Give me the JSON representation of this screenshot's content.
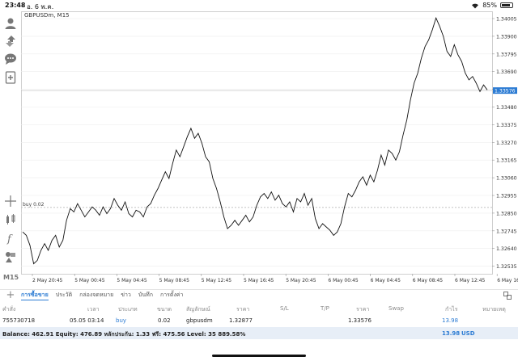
{
  "status_bar": {
    "time": "23:48",
    "date": "อ. 6 พ.ค.",
    "battery": "85%",
    "battery_level": 0.85
  },
  "chart": {
    "symbol": "GBPUSDm, M15",
    "trade_line_label": "buy 0.02",
    "current_price": "1.33576",
    "price_labels": [
      "1.34005",
      "1.33900",
      "1.33795",
      "1.33690",
      "1.33585",
      "1.33480",
      "1.33375",
      "1.33270",
      "1.33165",
      "1.33060",
      "1.32955",
      "1.32850",
      "1.32745",
      "1.32640",
      "1.32535"
    ],
    "time_labels": [
      "2 May 20:45",
      "5 May 00:45",
      "5 May 04:45",
      "5 May 08:45",
      "5 May 12:45",
      "5 May 16:45",
      "5 May 20:45",
      "6 May 00:45",
      "6 May 04:45",
      "6 May 08:45",
      "6 May 12:45",
      "6 May 16:45"
    ],
    "colors": {
      "line": "#111111",
      "grid": "#eeeeee",
      "price_tag": "#2b7bd3",
      "trade_line": "#bbbbbb"
    }
  },
  "chart_data": {
    "type": "line",
    "xlabel": "",
    "ylabel": "",
    "ylim": [
      1.3248,
      1.3405
    ],
    "grid": true,
    "series": [
      {
        "name": "",
        "values": [
          1.3273,
          1.3271,
          1.3265,
          1.3254,
          1.3256,
          1.3262,
          1.3266,
          1.3262,
          1.3268,
          1.3271,
          1.3264,
          1.3268,
          1.328,
          1.3287,
          1.3285,
          1.329,
          1.3286,
          1.3282,
          1.3285,
          1.3288,
          1.3286,
          1.3283,
          1.3288,
          1.3284,
          1.3287,
          1.3293,
          1.3289,
          1.3286,
          1.3291,
          1.3284,
          1.3282,
          1.3286,
          1.3285,
          1.3282,
          1.3288,
          1.329,
          1.3295,
          1.3299,
          1.3304,
          1.3309,
          1.3305,
          1.3314,
          1.3322,
          1.3318,
          1.3324,
          1.333,
          1.3335,
          1.3329,
          1.3332,
          1.3326,
          1.3318,
          1.3315,
          1.3305,
          1.3299,
          1.3291,
          1.3282,
          1.3275,
          1.3277,
          1.328,
          1.3277,
          1.328,
          1.3283,
          1.3279,
          1.3282,
          1.3289,
          1.3294,
          1.3296,
          1.3293,
          1.3297,
          1.3292,
          1.3295,
          1.329,
          1.3288,
          1.3291,
          1.3285,
          1.3293,
          1.3291,
          1.3296,
          1.3289,
          1.3293,
          1.3281,
          1.3275,
          1.3278,
          1.3276,
          1.3274,
          1.3271,
          1.3273,
          1.3278,
          1.3288,
          1.3296,
          1.3294,
          1.3298,
          1.3303,
          1.3306,
          1.3301,
          1.3307,
          1.3303,
          1.331,
          1.3319,
          1.3313,
          1.3322,
          1.332,
          1.3316,
          1.3321,
          1.3331,
          1.334,
          1.3352,
          1.3362,
          1.3368,
          1.3377,
          1.3384,
          1.3388,
          1.3394,
          1.3401,
          1.3396,
          1.339,
          1.3381,
          1.3378,
          1.3385,
          1.3379,
          1.3375,
          1.3368,
          1.3364,
          1.3366,
          1.3362,
          1.3357,
          1.3361,
          1.3358
        ]
      }
    ]
  },
  "tabs": [
    "การซื้อขาย",
    "ประวัติ",
    "กล่องจดหมาย",
    "ข่าว",
    "บันทึก",
    "การตั้งค่า"
  ],
  "table": {
    "headers": [
      "คำสั่ง",
      "เวลา",
      "ประเภท",
      "ขนาด",
      "สัญลักษณ์",
      "ราคา",
      "S/L",
      "T/P",
      "ราคา",
      "Swap",
      "กำไร",
      "หมายเหตุ"
    ],
    "rows": [
      {
        "order": "755730718",
        "time": "05.05 03:14",
        "type": "buy",
        "size": "0.02",
        "symbol": "gbpusdm",
        "open_price": "1.32877",
        "sl": "",
        "tp": "",
        "price": "1.33576",
        "swap": "",
        "profit": "13.98",
        "comment": ""
      }
    ]
  },
  "balance": {
    "text": "Balance: 462.91 Equity: 476.89 หลักประกัน: 1.33 ฟรี: 475.56 Level: 35 889.58%",
    "profit": "13.98",
    "currency": "USD"
  }
}
